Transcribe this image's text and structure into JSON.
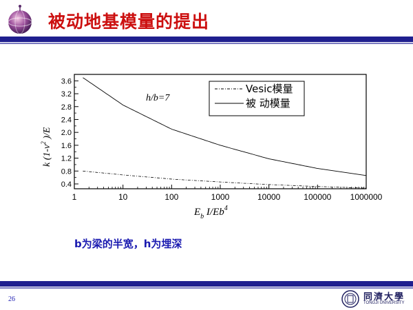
{
  "slide": {
    "title": "被动地基模量的提出",
    "note": "b为梁的半宽，h为埋深",
    "page_number": "26",
    "university_cn": "同濟大學",
    "university_en": "TONGJI UNIVERSITY",
    "colors": {
      "title": "#cc1010",
      "bar": "#1f1f8f",
      "note": "#1a1ab0"
    },
    "icons": [
      "globe-logo-icon",
      "university-emblem-icon"
    ]
  },
  "chart_data": {
    "type": "line",
    "x_scale": "log",
    "xlabel": "E_b I/Eb^4",
    "ylabel": "k (1-ν²)/E",
    "annotation": "h/b=7",
    "xlim": [
      1,
      1000000
    ],
    "ylim": [
      0.25,
      3.8
    ],
    "x_ticks": [
      "1",
      "10",
      "100",
      "1000",
      "10000",
      "100000",
      "1000000"
    ],
    "y_ticks": [
      "0.4",
      "0.8",
      "1.2",
      "1.6",
      "2.0",
      "2.4",
      "2.8",
      "3.2",
      "3.6"
    ],
    "grid": false,
    "legend_position": "top-right",
    "series": [
      {
        "name": "Vesic模量",
        "style": "dash-dot",
        "x": [
          1.5,
          10,
          100,
          1000,
          10000,
          100000,
          1000000
        ],
        "y": [
          0.8,
          0.68,
          0.55,
          0.46,
          0.38,
          0.32,
          0.27
        ]
      },
      {
        "name": "被  动模量",
        "style": "solid",
        "x": [
          1.5,
          10,
          100,
          1000,
          10000,
          100000,
          1000000
        ],
        "y": [
          3.7,
          2.85,
          2.1,
          1.6,
          1.18,
          0.88,
          0.66
        ]
      }
    ]
  }
}
